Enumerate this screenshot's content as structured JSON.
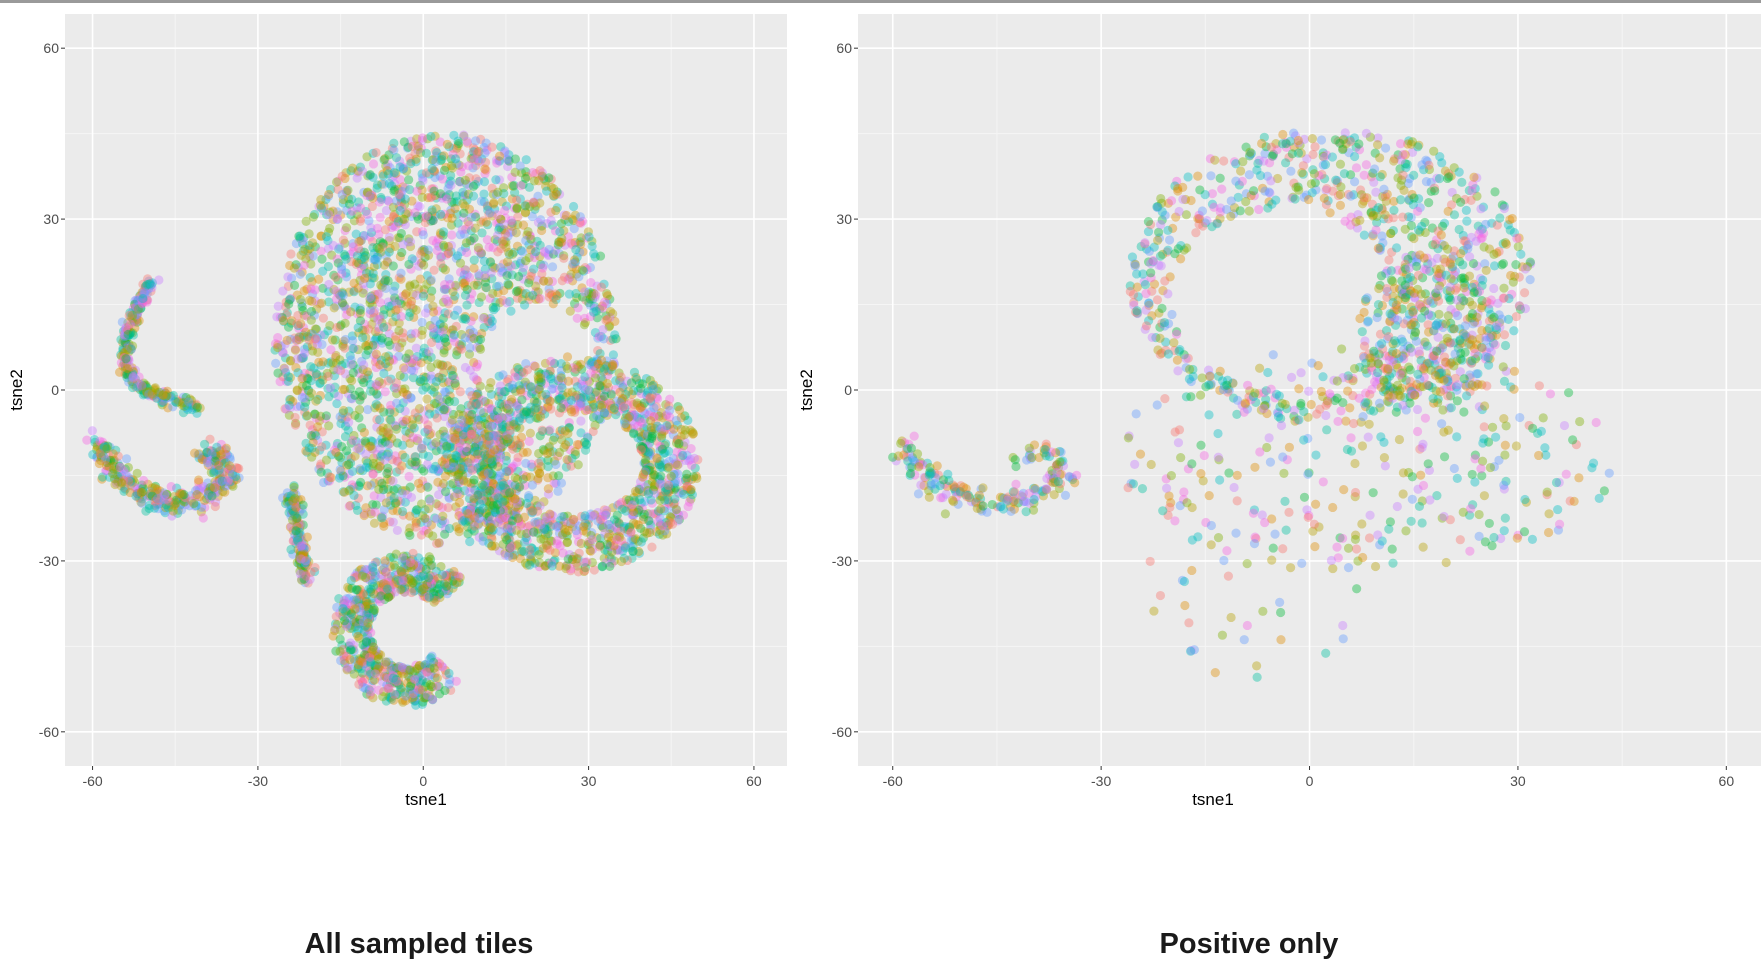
{
  "chart_data": [
    {
      "type": "scatter",
      "title": "",
      "caption": "All sampled tiles",
      "xlabel": "tsne1",
      "ylabel": "tsne2",
      "xlim": [
        -65,
        66
      ],
      "ylim": [
        -66,
        66
      ],
      "xticks": [
        -60,
        -30,
        0,
        30,
        60
      ],
      "yticks": [
        -60,
        -30,
        0,
        30,
        60
      ],
      "grid": true,
      "legend": "none",
      "point_alpha": 0.4,
      "colors": [
        "#F8766D",
        "#7CAE00",
        "#00BFC4",
        "#C77CFF",
        "#B79F00",
        "#00BA38",
        "#619CFF",
        "#F564E3",
        "#00C19F",
        "#DE8C00"
      ],
      "clusters": [
        {
          "name": "main-island",
          "type": "blob",
          "center": [
            4,
            9
          ],
          "rx": 31,
          "ry": 36,
          "hole_center": [
            21,
            4
          ],
          "hole_r": 11,
          "n": 2300
        },
        {
          "name": "right-ring",
          "type": "ring",
          "center": [
            27,
            -13
          ],
          "rx": 18,
          "ry": 14,
          "thickness": 5,
          "n": 1300
        },
        {
          "name": "bottom-c",
          "type": "arc",
          "center": [
            -3,
            -42
          ],
          "r": 10,
          "start_deg": 40,
          "end_deg": 315,
          "thickness": 3.5,
          "n": 650
        },
        {
          "name": "left-curve",
          "type": "path",
          "points": [
            [
              -49.5,
              19
            ],
            [
              -52,
              14
            ],
            [
              -54,
              9
            ],
            [
              -54,
              4
            ],
            [
              -51,
              0
            ],
            [
              -45,
              -2
            ],
            [
              -41,
              -3
            ]
          ],
          "width": 1.2,
          "n": 260
        },
        {
          "name": "left-hook",
          "type": "path",
          "points": [
            [
              -59,
              -9
            ],
            [
              -56,
              -14
            ],
            [
              -51,
              -18
            ],
            [
              -46,
              -20
            ],
            [
              -40,
              -19
            ],
            [
              -35,
              -15
            ],
            [
              -38,
              -11
            ],
            [
              -41,
              -12
            ]
          ],
          "width": 2.2,
          "n": 360
        },
        {
          "name": "small-streak",
          "type": "path",
          "points": [
            [
              -24,
              -18
            ],
            [
              -23,
              -24
            ],
            [
              -22,
              -30
            ],
            [
              -20.5,
              -33
            ]
          ],
          "width": 1.3,
          "n": 150
        }
      ]
    },
    {
      "type": "scatter",
      "title": "",
      "caption": "Positive only",
      "xlabel": "tsne1",
      "ylabel": "tsne2",
      "xlim": [
        -65,
        66
      ],
      "ylim": [
        -66,
        66
      ],
      "xticks": [
        -60,
        -30,
        0,
        30,
        60
      ],
      "yticks": [
        -60,
        -30,
        0,
        30,
        60
      ],
      "grid": true,
      "legend": "none",
      "point_alpha": 0.4,
      "colors": [
        "#F8766D",
        "#7CAE00",
        "#00BFC4",
        "#C77CFF",
        "#B79F00",
        "#00BA38",
        "#619CFF",
        "#F564E3",
        "#00C19F",
        "#DE8C00"
      ],
      "clusters": [
        {
          "name": "upper-dense-band",
          "type": "blob",
          "center": [
            3,
            20
          ],
          "rx": 29,
          "ry": 26,
          "hole_center": [
            -4,
            16
          ],
          "hole_r": 16,
          "n": 850
        },
        {
          "name": "right-arm",
          "type": "blob",
          "center": [
            17,
            10
          ],
          "rx": 10,
          "ry": 14,
          "n": 260
        },
        {
          "name": "lower-sparse",
          "type": "blob",
          "center": [
            8,
            -12
          ],
          "rx": 36,
          "ry": 20,
          "n": 320
        },
        {
          "name": "left-hook",
          "type": "path",
          "points": [
            [
              -59,
              -9
            ],
            [
              -56,
              -14
            ],
            [
              -51,
              -18
            ],
            [
              -46,
              -20
            ],
            [
              -40,
              -19
            ],
            [
              -35,
              -15
            ],
            [
              -38,
              -11
            ],
            [
              -41,
              -12
            ]
          ],
          "width": 2.2,
          "n": 200
        },
        {
          "name": "scattered-outliers",
          "type": "blob",
          "center": [
            -8,
            -35
          ],
          "rx": 16,
          "ry": 16,
          "n": 40
        }
      ]
    }
  ]
}
